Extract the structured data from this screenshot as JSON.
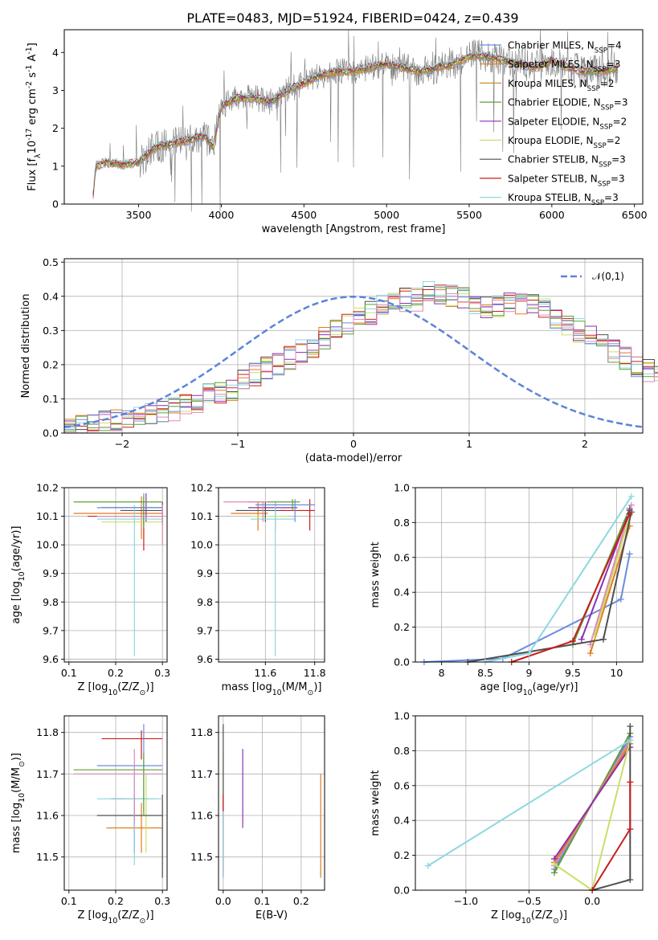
{
  "chart_data": [
    {
      "id": "spectrum",
      "type": "line",
      "title": "PLATE=0483, MJD=51924, FIBERID=0424, z=0.439",
      "xlabel": "wavelength [Angstrom, rest frame]",
      "ylabel": "Flux [f$_\\lambda$10$^{-17}$ erg cm$^{-2}$ s$^{-1}$ A$^{-1}$]",
      "xlim": [
        3050,
        6550
      ],
      "ylim": [
        0,
        4.6
      ],
      "xticks": [
        3500,
        4000,
        4500,
        5000,
        5500,
        6000,
        6500
      ],
      "yticks": [
        0,
        1,
        2,
        3,
        4
      ],
      "grid": false,
      "legend_position": "top-right",
      "legend": [
        "Chabrier MILES, N$_{SSP}$=4",
        "Salpeter MILES, N$_{SSP}$=3",
        "Kroupa MILES, N$_{SSP}$=2",
        "Chabrier ELODIE, N$_{SSP}$=3",
        "Salpeter ELODIE, N$_{SSP}$=2",
        "Kroupa ELODIE, N$_{SSP}$=2",
        "Chabrier STELIB, N$_{SSP}$=3",
        "Salpeter STELIB, N$_{SSP}$=3",
        "Kroupa STELIB, N$_{SSP}$=3"
      ],
      "continuum_points": [
        [
          3220,
          0.0
        ],
        [
          3240,
          1.0
        ],
        [
          3300,
          1.1
        ],
        [
          3400,
          1.05
        ],
        [
          3500,
          1.1
        ],
        [
          3600,
          1.5
        ],
        [
          3700,
          1.6
        ],
        [
          3800,
          1.7
        ],
        [
          3900,
          1.8
        ],
        [
          3950,
          1.5
        ],
        [
          4000,
          2.6
        ],
        [
          4100,
          2.8
        ],
        [
          4200,
          2.8
        ],
        [
          4300,
          2.7
        ],
        [
          4400,
          3.0
        ],
        [
          4500,
          3.2
        ],
        [
          4600,
          3.4
        ],
        [
          4700,
          3.5
        ],
        [
          4800,
          3.5
        ],
        [
          4900,
          3.6
        ],
        [
          5000,
          3.7
        ],
        [
          5100,
          3.6
        ],
        [
          5200,
          3.5
        ],
        [
          5300,
          3.6
        ],
        [
          5400,
          3.7
        ],
        [
          5500,
          3.9
        ],
        [
          5600,
          3.9
        ],
        [
          5700,
          3.8
        ],
        [
          5800,
          3.7
        ],
        [
          5900,
          3.6
        ],
        [
          6000,
          3.8
        ],
        [
          6100,
          3.6
        ],
        [
          6200,
          3.5
        ],
        [
          6300,
          3.5
        ],
        [
          6400,
          3.6
        ]
      ]
    },
    {
      "id": "residuals",
      "type": "histogram",
      "xlabel": "(data-model)/error",
      "ylabel": "Normed distribution",
      "xlim": [
        -2.5,
        2.5
      ],
      "ylim": [
        0,
        0.51
      ],
      "xticks": [
        -2,
        -1,
        0,
        1,
        2
      ],
      "yticks": [
        0.0,
        0.1,
        0.2,
        0.3,
        0.4,
        0.5
      ],
      "grid": true,
      "legend": [
        "$\\mathcal{N}(0,1)$"
      ],
      "legend_position": "top-right",
      "bin_width": 0.1,
      "base_counts": [
        0.01,
        0.02,
        0.03,
        0.04,
        0.04,
        0.05,
        0.05,
        0.06,
        0.06,
        0.07,
        0.09,
        0.09,
        0.11,
        0.12,
        0.13,
        0.16,
        0.17,
        0.19,
        0.2,
        0.22,
        0.24,
        0.25,
        0.28,
        0.3,
        0.32,
        0.34,
        0.35,
        0.37,
        0.38,
        0.39,
        0.39,
        0.41,
        0.41,
        0.4,
        0.39,
        0.38,
        0.37,
        0.37,
        0.38,
        0.38,
        0.37,
        0.36,
        0.33,
        0.31,
        0.3,
        0.28,
        0.26,
        0.24,
        0.22,
        0.2,
        0.18,
        0.17,
        0.15,
        0.13,
        0.12,
        0.11,
        0.09,
        0.09,
        0.07,
        0.07,
        0.06,
        0.06,
        0.05,
        0.05,
        0.05,
        0.04,
        0.04,
        0.04,
        0.03,
        0.03
      ]
    },
    {
      "id": "Z-age",
      "type": "errorbar",
      "xlabel": "Z [log$_{10}$(Z/Z$_\\odot$)]",
      "ylabel": "age  [log$_{10}$($age/yr$)]",
      "xlim": [
        0.09,
        0.31
      ],
      "ylim": [
        9.59,
        10.2
      ],
      "xticks": [
        0.1,
        0.2,
        0.3
      ],
      "xticklabels": [
        "0.1",
        "0.2",
        "0.3"
      ],
      "yticks": [
        9.6,
        9.7,
        9.8,
        9.9,
        10.0,
        10.1,
        10.2
      ],
      "grid": true,
      "points": [
        {
          "x": 0.255,
          "y": 10.11,
          "xerr": [
            0.145,
            0.045
          ],
          "yerr": [
            0.09,
            0.06
          ]
        },
        {
          "x": 0.265,
          "y": 10.13,
          "xerr": [
            0.095,
            0.035
          ],
          "yerr": [
            0.05,
            0.05
          ]
        },
        {
          "x": 0.3,
          "y": 10.08,
          "xerr": [
            0.13,
            0.0
          ],
          "yerr": [
            0.08,
            0.02
          ]
        },
        {
          "x": 0.3,
          "y": 10.12,
          "xerr": [
            0.09,
            0.0
          ],
          "yerr": [
            0.05,
            0.03
          ]
        },
        {
          "x": 0.26,
          "y": 10.1,
          "xerr": [
            0.12,
            0.04
          ],
          "yerr": [
            0.12,
            0.05
          ]
        },
        {
          "x": 0.24,
          "y": 10.09,
          "xerr": [
            0.08,
            0.06
          ],
          "yerr": [
            0.48,
            0.05
          ]
        },
        {
          "x": 0.26,
          "y": 10.13,
          "xerr": [
            0.1,
            0.04
          ],
          "yerr": [
            0.07,
            0.05
          ]
        },
        {
          "x": 0.26,
          "y": 10.15,
          "xerr": [
            0.15,
            0.04
          ],
          "yerr": [
            0.09,
            0.02
          ]
        },
        {
          "x": 0.3,
          "y": 10.1,
          "xerr": [
            0.14,
            0.0
          ],
          "yerr": [
            0.1,
            0.04
          ]
        }
      ]
    },
    {
      "id": "mass-age",
      "type": "errorbar",
      "xlabel": "mass [log$_{10}$(M/M$_\\odot$)]",
      "ylabel": "",
      "xlim": [
        11.41,
        11.84
      ],
      "ylim": [
        9.59,
        10.2
      ],
      "xticks": [
        11.6,
        11.8
      ],
      "xticklabels": [
        "11.6",
        "11.8"
      ],
      "yticks": [
        9.6,
        9.7,
        9.8,
        9.9,
        10.0,
        10.1,
        10.2
      ],
      "grid": true,
      "points": [
        {
          "x": 11.57,
          "y": 10.11,
          "xerr": [
            0.11,
            0.04
          ],
          "yerr": [
            0.06,
            0.04
          ]
        },
        {
          "x": 11.64,
          "y": 10.13,
          "xerr": [
            0.11,
            0.09
          ],
          "yerr": [
            0.08,
            0.02
          ]
        },
        {
          "x": 11.64,
          "y": 10.1,
          "xerr": [
            0.1,
            0.05
          ],
          "yerr": [
            0.06,
            0.02
          ]
        },
        {
          "x": 11.6,
          "y": 10.12,
          "xerr": [
            0.12,
            0.08
          ],
          "yerr": [
            0.04,
            0.03
          ]
        },
        {
          "x": 11.78,
          "y": 10.12,
          "xerr": [
            0.12,
            0.02
          ],
          "yerr": [
            0.07,
            0.04
          ]
        },
        {
          "x": 11.64,
          "y": 10.09,
          "xerr": [
            0.1,
            0.08
          ],
          "yerr": [
            0.48,
            0.06
          ]
        },
        {
          "x": 11.72,
          "y": 10.14,
          "xerr": [
            0.16,
            0.08
          ],
          "yerr": [
            0.06,
            0.02
          ]
        },
        {
          "x": 11.71,
          "y": 10.15,
          "xerr": [
            0.18,
            0.03
          ],
          "yerr": [
            0.03,
            0.01
          ]
        },
        {
          "x": 11.59,
          "y": 10.15,
          "xerr": [
            0.16,
            0.02
          ],
          "yerr": [
            0.07,
            0.0
          ]
        }
      ]
    },
    {
      "id": "age-weight",
      "type": "line",
      "xlabel": "age  [log$_{10}$($age/yr$)]",
      "ylabel": "mass weight",
      "xlim": [
        7.7,
        10.3
      ],
      "ylim": [
        0.0,
        1.0
      ],
      "xticks": [
        8.0,
        8.5,
        9.0,
        9.5,
        10.0
      ],
      "yticks": [
        0.0,
        0.2,
        0.4,
        0.6,
        0.8,
        1.0
      ],
      "grid": true,
      "series": [
        {
          "points": [
            [
              7.8,
              0.0
            ],
            [
              8.7,
              0.02
            ],
            [
              10.05,
              0.36
            ],
            [
              10.15,
              0.62
            ]
          ]
        },
        {
          "points": [
            [
              9.5,
              0.1
            ],
            [
              10.15,
              0.88
            ]
          ]
        },
        {
          "points": [
            [
              9.7,
              0.1
            ],
            [
              10.17,
              0.9
            ]
          ]
        },
        {
          "points": [
            [
              9.7,
              0.05
            ],
            [
              10.15,
              0.78
            ]
          ]
        },
        {
          "points": [
            [
              9.6,
              0.13
            ],
            [
              10.15,
              0.87
            ]
          ]
        },
        {
          "points": [
            [
              9.75,
              0.15
            ],
            [
              10.15,
              0.84
            ]
          ]
        },
        {
          "points": [
            [
              8.3,
              0.0
            ],
            [
              9.85,
              0.13
            ],
            [
              10.17,
              0.86
            ]
          ]
        },
        {
          "points": [
            [
              8.8,
              0.0
            ],
            [
              9.5,
              0.12
            ],
            [
              10.15,
              0.85
            ]
          ]
        },
        {
          "points": [
            [
              8.5,
              0.0
            ],
            [
              9.0,
              0.05
            ],
            [
              10.17,
              0.95
            ]
          ]
        }
      ]
    },
    {
      "id": "Z-mass",
      "type": "errorbar",
      "xlabel": "Z [log$_{10}$(Z/Z$_\\odot$)]",
      "ylabel": "mass [log$_{10}$(M/M$_\\odot$)]",
      "xlim": [
        0.09,
        0.31
      ],
      "ylim": [
        11.42,
        11.84
      ],
      "xticks": [
        0.1,
        0.2,
        0.3
      ],
      "xticklabels": [
        "0.1",
        "0.2",
        "0.3"
      ],
      "yticks": [
        11.5,
        11.6,
        11.7,
        11.8
      ],
      "grid": true,
      "points": [
        {
          "x": 0.255,
          "y": 11.57,
          "xerr": [
            0.075,
            0.045
          ],
          "yerr": [
            0.06,
            0.06
          ]
        },
        {
          "x": 0.24,
          "y": 11.64,
          "xerr": [
            0.05,
            0.03
          ],
          "yerr": [
            0.13,
            0.01
          ]
        },
        {
          "x": 0.265,
          "y": 11.64,
          "xerr": [
            0.045,
            0.025
          ],
          "yerr": [
            0.13,
            0.06
          ]
        },
        {
          "x": 0.3,
          "y": 11.6,
          "xerr": [
            0.14,
            0.0
          ],
          "yerr": [
            0.15,
            0.05
          ]
        },
        {
          "x": 0.255,
          "y": 11.785,
          "xerr": [
            0.085,
            0.045
          ],
          "yerr": [
            0.05,
            0.02
          ]
        },
        {
          "x": 0.24,
          "y": 11.64,
          "xerr": [
            0.08,
            0.06
          ],
          "yerr": [
            0.16,
            0.08
          ]
        },
        {
          "x": 0.26,
          "y": 11.72,
          "xerr": [
            0.1,
            0.04
          ],
          "yerr": [
            0.11,
            0.1
          ]
        },
        {
          "x": 0.26,
          "y": 11.71,
          "xerr": [
            0.15,
            0.04
          ],
          "yerr": [
            0.11,
            0.04
          ]
        },
        {
          "x": 0.24,
          "y": 11.7,
          "xerr": [
            0.13,
            0.06
          ],
          "yerr": [
            0.12,
            0.06
          ]
        }
      ]
    },
    {
      "id": "ebv-mass",
      "type": "errorbar",
      "xlabel": "E(B-V)",
      "ylabel": "",
      "xlim": [
        -0.012,
        0.26
      ],
      "ylim": [
        11.42,
        11.84
      ],
      "xticks": [
        0.0,
        0.1,
        0.2
      ],
      "xticklabels": [
        "0.0",
        "0.1",
        "0.2"
      ],
      "yticks": [
        11.5,
        11.6,
        11.7,
        11.8
      ],
      "grid": true,
      "points": [
        {
          "x": 0.25,
          "y": 11.58,
          "yerr": [
            0.13,
            0.12
          ]
        },
        {
          "x": 0.05,
          "y": 11.67,
          "yerr": [
            0.1,
            0.09
          ]
        },
        {
          "x": 0.0,
          "y": 11.7,
          "yerr": [
            0.09,
            0.05
          ]
        },
        {
          "x": 0.0,
          "y": 11.58,
          "yerr": [
            0.12,
            0.24
          ]
        },
        {
          "x": 0.0,
          "y": 11.55,
          "yerr": [
            0.1,
            0.1
          ]
        },
        {
          "x": 0.0,
          "y": 11.53,
          "yerr": [
            0.08,
            0.08
          ]
        }
      ]
    },
    {
      "id": "Z-weight",
      "type": "line",
      "xlabel": "Z [log$_{10}$(Z/Z$_\\odot$)]",
      "ylabel": "mass weight",
      "xlim": [
        -1.4,
        0.4
      ],
      "ylim": [
        0.0,
        1.0
      ],
      "xticks": [
        -1.0,
        -0.5,
        0.0
      ],
      "xticklabels": [
        "−1.0",
        "−0.5",
        "0.0"
      ],
      "yticks": [
        0.0,
        0.2,
        0.4,
        0.6,
        0.8,
        1.0
      ],
      "grid": true,
      "series": [
        {
          "points": [
            [
              -0.3,
              0.12
            ],
            [
              0.3,
              0.88
            ]
          ]
        },
        {
          "points": [
            [
              -0.3,
              0.1
            ],
            [
              0.3,
              0.9
            ]
          ]
        },
        {
          "points": [
            [
              -0.3,
              0.14
            ],
            [
              0.3,
              0.86
            ]
          ]
        },
        {
          "points": [
            [
              -0.3,
              0.16
            ],
            [
              0.3,
              0.84
            ]
          ]
        },
        {
          "points": [
            [
              -0.3,
              0.18
            ],
            [
              0.3,
              0.82
            ]
          ]
        },
        {
          "points": [
            [
              -0.3,
              0.15
            ],
            [
              0.0,
              0.0
            ],
            [
              0.3,
              0.86
            ]
          ]
        },
        {
          "points": [
            [
              0.0,
              0.0
            ],
            [
              0.3,
              0.06
            ],
            [
              0.3,
              0.94
            ]
          ]
        },
        {
          "points": [
            [
              0.0,
              0.0
            ],
            [
              0.3,
              0.35
            ],
            [
              0.3,
              0.62
            ]
          ]
        },
        {
          "points": [
            [
              -1.3,
              0.14
            ],
            [
              0.3,
              0.86
            ]
          ]
        }
      ]
    }
  ],
  "colors": [
    "#e07b1f",
    "#8b2fb0",
    "#c8e06a",
    "#4f4f4f",
    "#c81e1e",
    "#8ed8e0",
    "#6a8ce0",
    "#5e9f35",
    "#e088b8"
  ],
  "legend_colors": [
    "#6a8ce0",
    "#e07b1f",
    "#c8902a",
    "#5e9f35",
    "#8b2fb0",
    "#c8e06a",
    "#4f4f4f",
    "#c81e1e",
    "#8ed8e0"
  ]
}
